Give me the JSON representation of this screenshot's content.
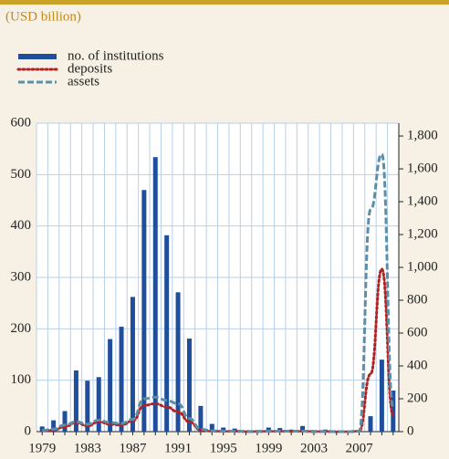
{
  "chart_data": {
    "type": "bar-line",
    "subtitle": "(USD billion)",
    "categories": [
      "1979",
      null,
      null,
      null,
      "1983",
      null,
      null,
      null,
      "1987",
      null,
      null,
      null,
      "1991",
      null,
      null,
      null,
      "1995",
      null,
      null,
      null,
      "1999",
      null,
      null,
      null,
      "2003",
      null,
      null,
      null,
      "2007",
      null,
      null,
      null
    ],
    "series": [
      {
        "name": "no. of institutions",
        "color": "#1f4e9c",
        "kind": "bar",
        "values": [
          10,
          22,
          40,
          119,
          99,
          106,
          180,
          204,
          262,
          470,
          534,
          382,
          271,
          181,
          50,
          15,
          8,
          6,
          1,
          3,
          8,
          7,
          4,
          11,
          3,
          4,
          0,
          0,
          3,
          30,
          140,
          80
        ]
      },
      {
        "name": "deposits",
        "color": "#b22222",
        "kind": "dotted",
        "axis": "y2",
        "values": [
          5,
          10,
          30,
          55,
          35,
          60,
          45,
          40,
          65,
          160,
          170,
          150,
          120,
          60,
          10,
          3,
          2,
          2,
          1,
          1,
          2,
          2,
          2,
          2,
          1,
          1,
          0,
          0,
          3,
          350,
          990,
          100
        ]
      },
      {
        "name": "assets",
        "color": "#5b8fa8",
        "kind": "dashed",
        "axis": "y2",
        "values": [
          8,
          15,
          40,
          60,
          45,
          70,
          55,
          50,
          75,
          200,
          210,
          190,
          170,
          80,
          15,
          5,
          3,
          3,
          1,
          1,
          3,
          3,
          3,
          3,
          1,
          1,
          0,
          0,
          3,
          1350,
          1690,
          150
        ]
      }
    ],
    "ylim": [
      0,
      600
    ],
    "yticks": [
      0,
      100,
      200,
      300,
      400,
      500,
      600
    ],
    "y2lim": [
      0,
      1878
    ],
    "y2ticks": [
      0,
      200,
      400,
      600,
      800,
      {
        "value": 1000,
        "label": "1,000"
      },
      {
        "value": 1200,
        "label": "1,200"
      },
      {
        "value": 1400,
        "label": "1,400"
      },
      {
        "value": 1600,
        "label": "1,600"
      },
      {
        "value": 1800,
        "label": "1,800"
      }
    ],
    "grid": true
  }
}
